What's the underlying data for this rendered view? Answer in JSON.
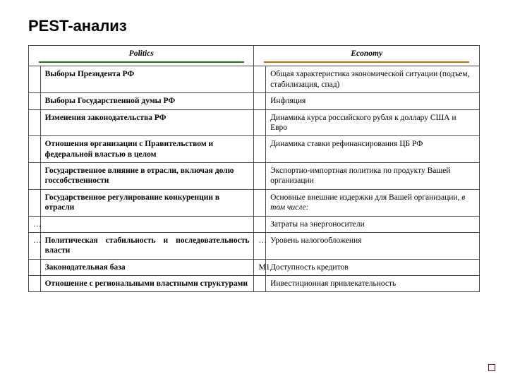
{
  "title": "PEST-анализ",
  "colors": {
    "politics_underline": "#1a7a1a",
    "economy_underline": "#c07000",
    "border": "#4a4a4a",
    "corner_square": "#7a0c0c",
    "text": "#000000",
    "background": "#ffffff"
  },
  "headers": {
    "politics": "Politics",
    "economy": "Economy"
  },
  "rows": [
    {
      "lmark": "",
      "left": "Выборы Президента РФ",
      "rmark": "",
      "right": "Общая характеристика экономической ситуации (подъем, стабилизация, спад)"
    },
    {
      "lmark": "",
      "left": "Выборы Государственной думы РФ",
      "rmark": "",
      "right": "Инфляция"
    },
    {
      "lmark": "",
      "left": "Изменения законодательства РФ",
      "rmark": "",
      "right": "Динамика курса российского рубля к доллару США и Евро"
    },
    {
      "lmark": "",
      "left": "Отношения организации с Правительством и федеральной властью в целом",
      "rmark": "",
      "right": "Динамика ставки рефинансирования ЦБ РФ"
    },
    {
      "lmark": "",
      "left": "Государственное влияние в отрасли, включая долю госсобственности",
      "rmark": "",
      "right": "Экспортно-импортная политика по продукту Вашей организации"
    },
    {
      "lmark": "",
      "left": "Государственное регулирование конкуренции в отрасли",
      "rmark": "",
      "right": "Основные внешние издержки для Вашей организации,",
      "right_suffix_italic": "в том числе:"
    },
    {
      "lmark": "…",
      "left": "",
      "rmark": "",
      "right": "Затраты на энергоносители"
    },
    {
      "lmark": "…",
      "left": "Политическая стабильность и последовательность власти",
      "left_justify": true,
      "rmark": "…",
      "right": "Уровень налогообложения"
    },
    {
      "lmark": "",
      "left": "Законодательная база",
      "rmark": "М1",
      "right": "Доступность кредитов"
    },
    {
      "lmark": "",
      "left": "Отношение с региональными властными структурами",
      "rmark": "",
      "right": "Инвестиционная привлекательность"
    }
  ]
}
